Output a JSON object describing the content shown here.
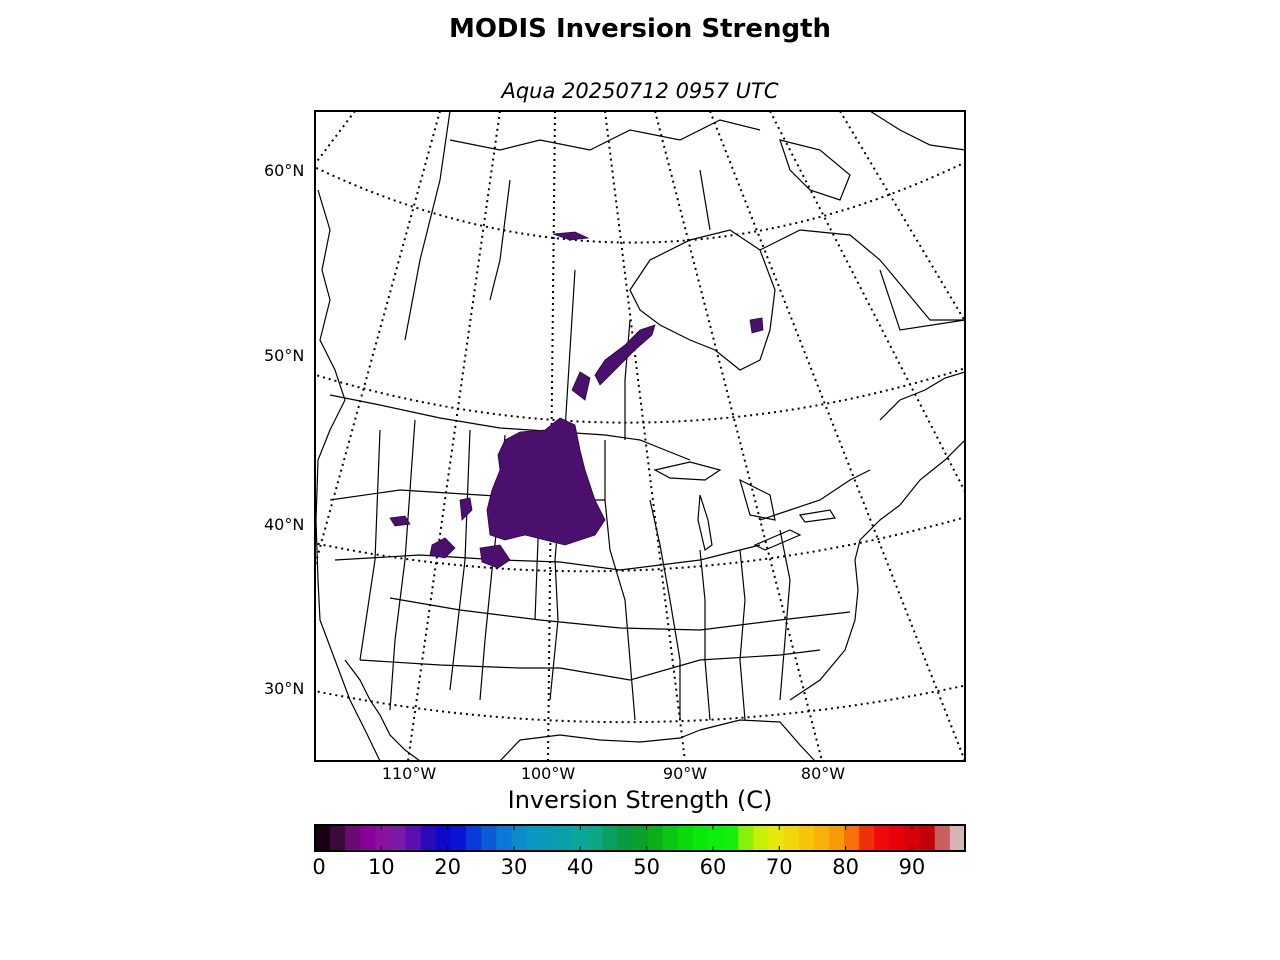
{
  "title": "MODIS Inversion Strength",
  "subtitle": "Aqua 20250712 0957 UTC",
  "map": {
    "projection": "lambert-conformal",
    "lat_labels": [
      "60°N",
      "50°N",
      "40°N",
      "30°N"
    ],
    "lon_labels": [
      "110°W",
      "100°W",
      "90°W",
      "80°W"
    ],
    "data_color": "#4b0f6e"
  },
  "colorbar": {
    "title": "Inversion Strength (C)",
    "ticks": [
      "0",
      "10",
      "20",
      "30",
      "40",
      "50",
      "60",
      "70",
      "80",
      "90"
    ],
    "range": [
      0,
      98
    ],
    "colors": [
      "#1a0014",
      "#3a0a3a",
      "#6a0a74",
      "#880099",
      "#8a10a0",
      "#7a1aa8",
      "#5a10b0",
      "#2a0aba",
      "#0a0ac8",
      "#0a14d4",
      "#0a3ad8",
      "#0a5ad8",
      "#0a78d4",
      "#0a8ccc",
      "#0a98c0",
      "#0a9ab4",
      "#0aa0a8",
      "#0aa89a",
      "#0aa884",
      "#0aa064",
      "#0a9a40",
      "#0aa02a",
      "#0ab01a",
      "#0ac814",
      "#0ada0a",
      "#0ae80a",
      "#0af00a",
      "#14f00a",
      "#8af00a",
      "#caf00a",
      "#e8e80a",
      "#f0d80a",
      "#f8c40a",
      "#f8b00a",
      "#f89a0a",
      "#f8700a",
      "#f0300a",
      "#f00a0a",
      "#e8000a",
      "#d8000a",
      "#c4000a",
      "#c86060",
      "#d4b4b4"
    ]
  }
}
